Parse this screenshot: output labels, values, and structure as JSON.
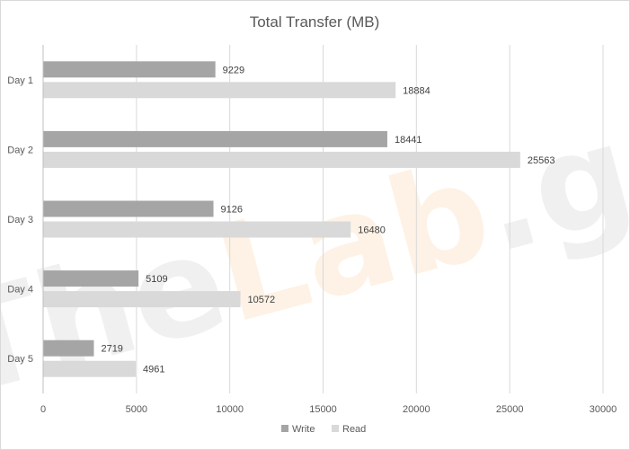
{
  "chart_data": {
    "type": "bar",
    "orientation": "horizontal",
    "title": "Total Transfer (MB)",
    "xlabel": "",
    "ylabel": "",
    "categories": [
      "Day 1",
      "Day 2",
      "Day 3",
      "Day 4",
      "Day 5"
    ],
    "series": [
      {
        "name": "Write",
        "values": [
          9229,
          18441,
          9126,
          5109,
          2719
        ],
        "color": "#a5a5a5"
      },
      {
        "name": "Read",
        "values": [
          18884,
          25563,
          16480,
          10572,
          4961
        ],
        "color": "#d9d9d9"
      }
    ],
    "xlim": [
      0,
      30000
    ],
    "x_ticks": [
      "0",
      "5000",
      "10000",
      "15000",
      "20000",
      "25000",
      "30000"
    ],
    "grid": "vertical",
    "legend_position": "bottom",
    "data_labels": true
  },
  "watermark": {
    "text": "TheLab.gr",
    "colors": [
      "#ececec",
      "#fdeedd",
      "#ececec"
    ]
  }
}
